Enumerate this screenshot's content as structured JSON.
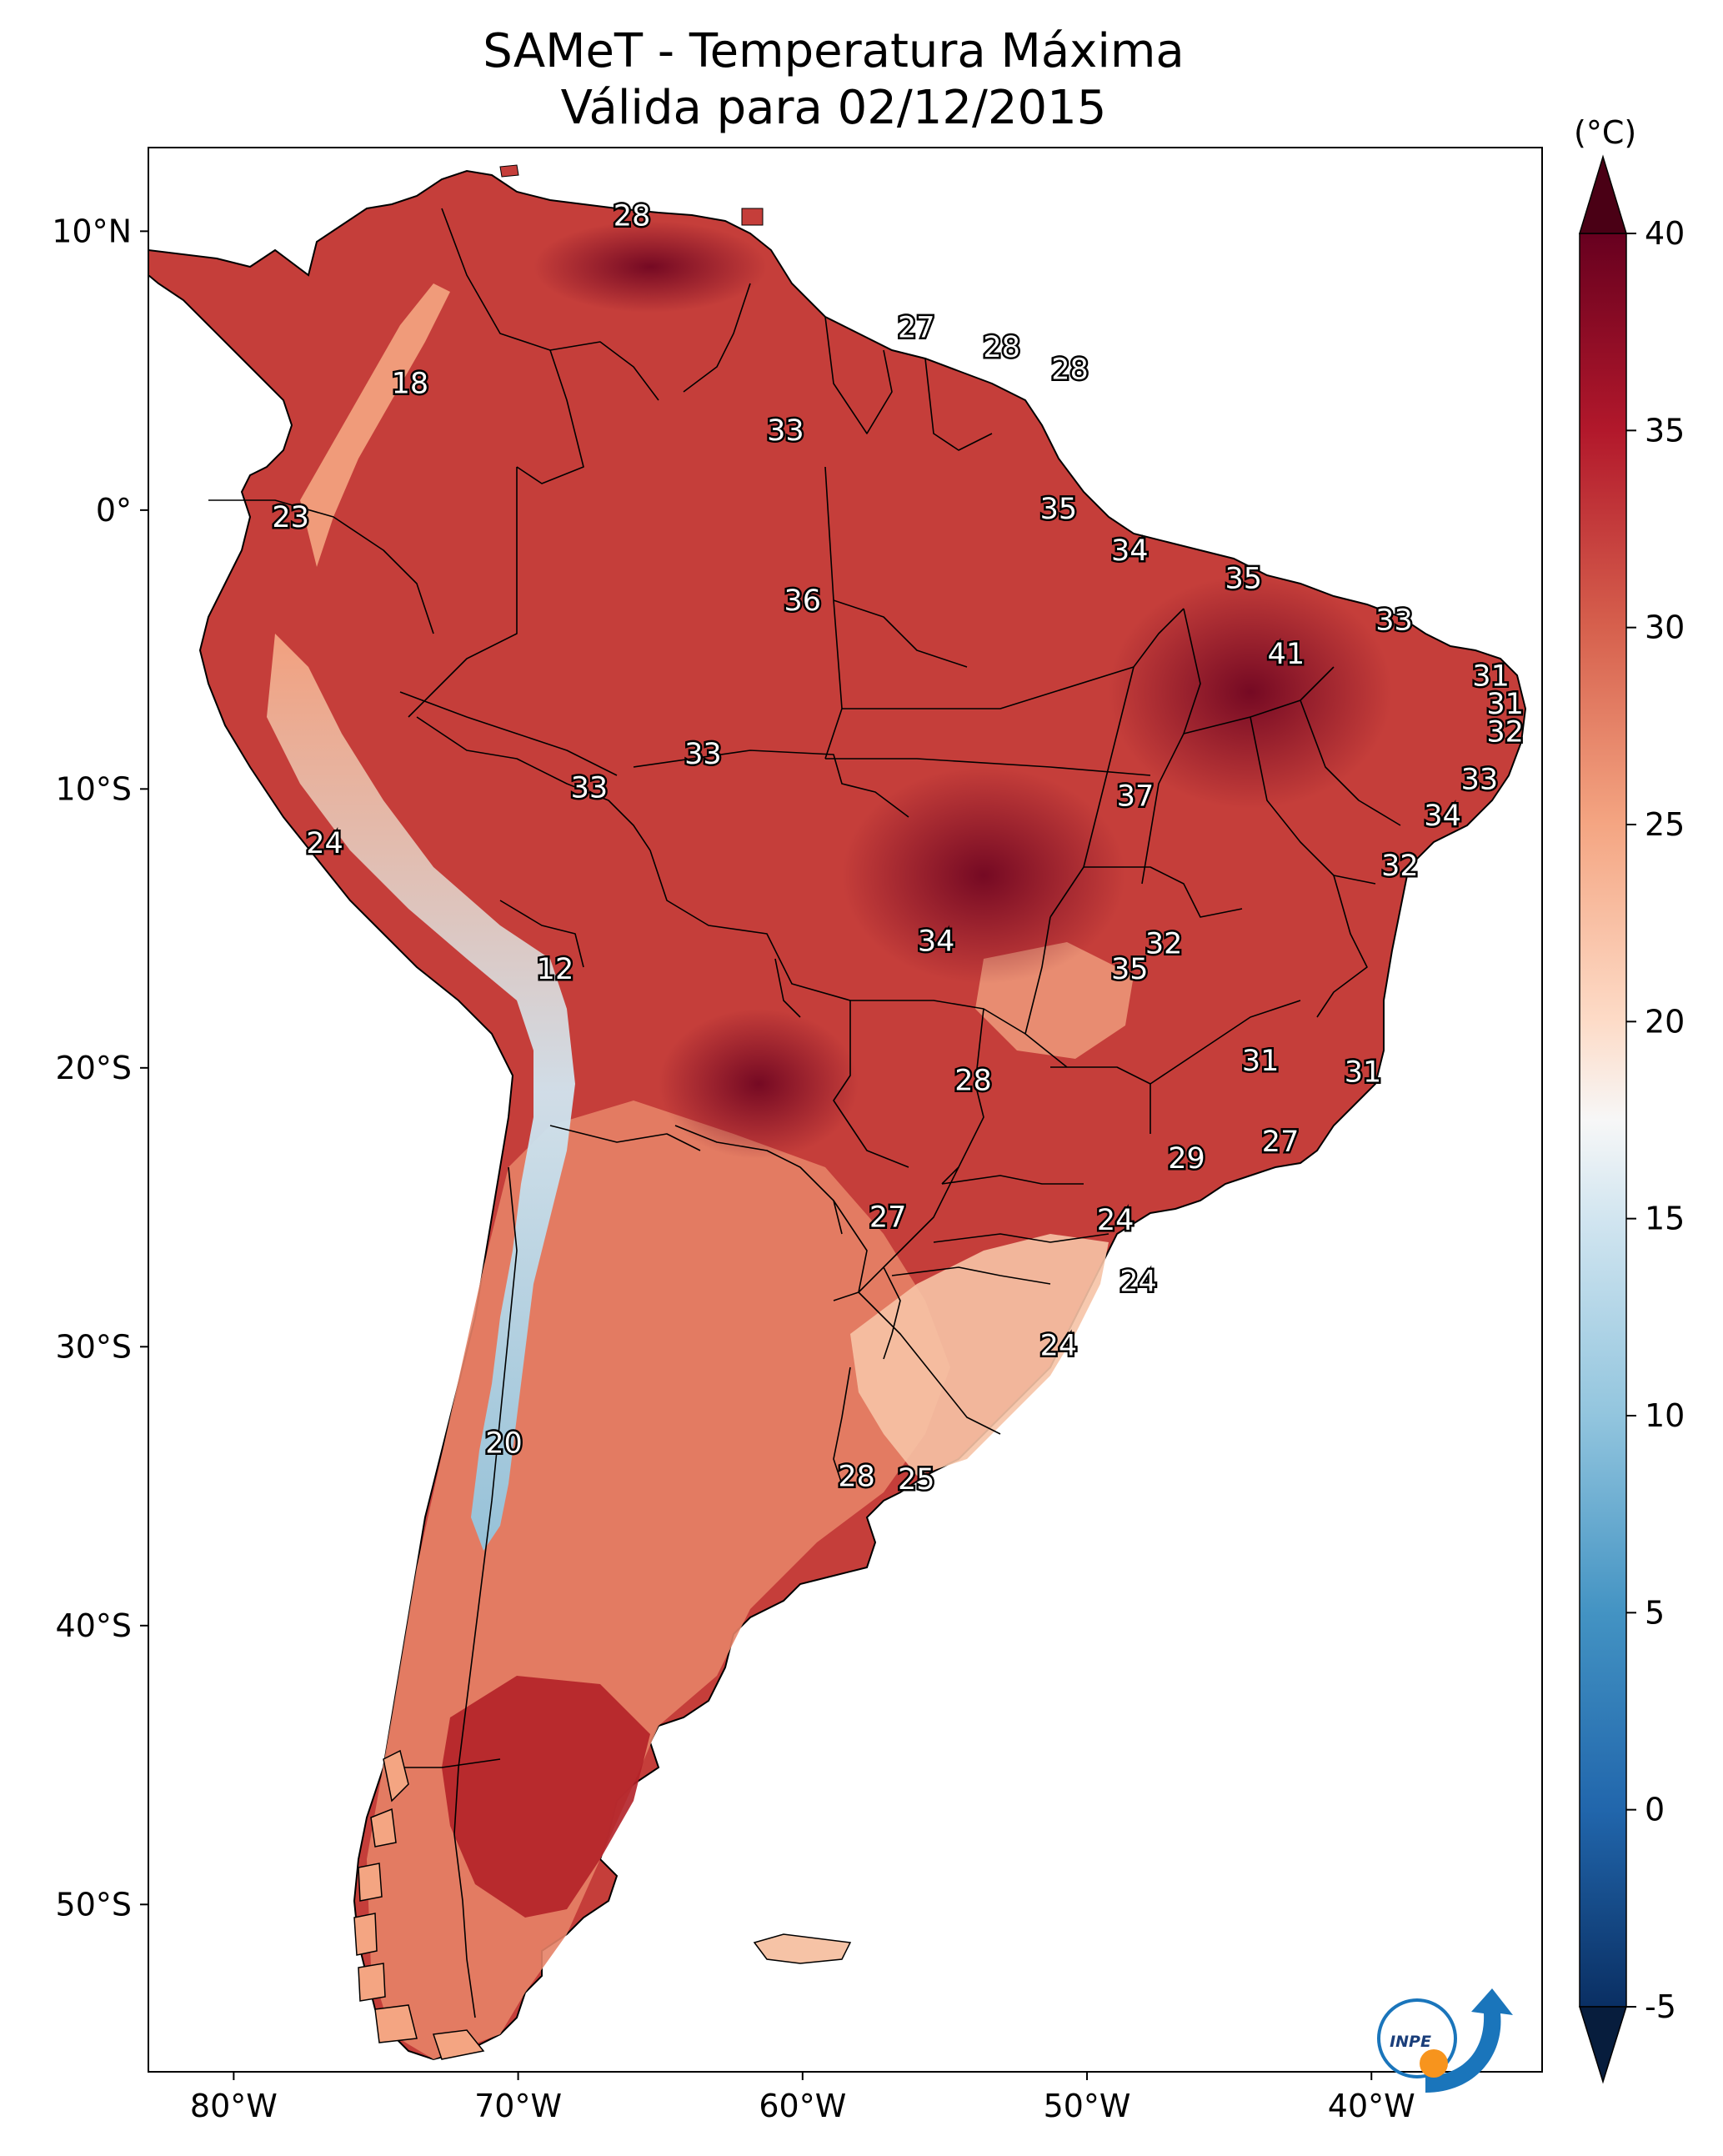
{
  "title_line1": "SAMeT - Temperatura Máxima",
  "title_line2": "Válida para 02/12/2015",
  "colorbar": {
    "unit": "(°C)",
    "ticks": [
      "40",
      "35",
      "30",
      "25",
      "20",
      "15",
      "10",
      "5",
      "0",
      "-5"
    ],
    "tick_values": [
      40,
      35,
      30,
      25,
      20,
      15,
      10,
      5,
      0,
      -5
    ],
    "range": [
      -5,
      40
    ]
  },
  "axes": {
    "lat_labels": [
      "10°N",
      "0°",
      "10°S",
      "20°S",
      "30°S",
      "40°S",
      "50°S"
    ],
    "lat_values": [
      10,
      0,
      -10,
      -20,
      -30,
      -40,
      -50
    ],
    "lon_labels": [
      "80°W",
      "70°W",
      "60°W",
      "50°W",
      "40°W"
    ],
    "lon_values": [
      -80,
      -70,
      -60,
      -50,
      -40
    ],
    "lon_range": [
      -83,
      -34
    ],
    "lat_range": [
      13,
      -56
    ]
  },
  "logo_text": "INPE",
  "contour_labels": [
    {
      "text": "28",
      "lon": -66.0,
      "lat": 10.5
    },
    {
      "text": "27",
      "lon": -56.0,
      "lat": 6.5
    },
    {
      "text": "28",
      "lon": -53.0,
      "lat": 5.8
    },
    {
      "text": "28",
      "lon": -50.6,
      "lat": 5.0
    },
    {
      "text": "18",
      "lon": -73.8,
      "lat": 4.5
    },
    {
      "text": "33",
      "lon": -60.6,
      "lat": 2.8
    },
    {
      "text": "35",
      "lon": -51.0,
      "lat": 0.0
    },
    {
      "text": "34",
      "lon": -48.5,
      "lat": -1.5
    },
    {
      "text": "23",
      "lon": -78.0,
      "lat": -0.3
    },
    {
      "text": "35",
      "lon": -44.5,
      "lat": -2.5
    },
    {
      "text": "33",
      "lon": -39.2,
      "lat": -4.0
    },
    {
      "text": "36",
      "lon": -60.0,
      "lat": -3.3
    },
    {
      "text": "41",
      "lon": -43.0,
      "lat": -5.2
    },
    {
      "text": "31",
      "lon": -35.8,
      "lat": -6.0
    },
    {
      "text": "31",
      "lon": -35.3,
      "lat": -7.0
    },
    {
      "text": "32",
      "lon": -35.3,
      "lat": -8.0
    },
    {
      "text": "33",
      "lon": -63.5,
      "lat": -8.8
    },
    {
      "text": "33",
      "lon": -36.2,
      "lat": -9.7
    },
    {
      "text": "33",
      "lon": -67.5,
      "lat": -10.0
    },
    {
      "text": "37",
      "lon": -48.3,
      "lat": -10.3
    },
    {
      "text": "34",
      "lon": -37.5,
      "lat": -11.0
    },
    {
      "text": "24",
      "lon": -76.8,
      "lat": -12.0
    },
    {
      "text": "32",
      "lon": -39.0,
      "lat": -12.8
    },
    {
      "text": "34",
      "lon": -55.3,
      "lat": -15.5
    },
    {
      "text": "32",
      "lon": -47.3,
      "lat": -15.6
    },
    {
      "text": "35",
      "lon": -48.5,
      "lat": -16.5
    },
    {
      "text": "12",
      "lon": -68.7,
      "lat": -16.5
    },
    {
      "text": "31",
      "lon": -43.9,
      "lat": -19.8
    },
    {
      "text": "31",
      "lon": -40.3,
      "lat": -20.2
    },
    {
      "text": "28",
      "lon": -54.0,
      "lat": -20.5
    },
    {
      "text": "27",
      "lon": -43.2,
      "lat": -22.7
    },
    {
      "text": "29",
      "lon": -46.5,
      "lat": -23.3
    },
    {
      "text": "27",
      "lon": -57.0,
      "lat": -25.4
    },
    {
      "text": "24",
      "lon": -49.0,
      "lat": -25.5
    },
    {
      "text": "24",
      "lon": -48.2,
      "lat": -27.7
    },
    {
      "text": "24",
      "lon": -51.0,
      "lat": -30.0
    },
    {
      "text": "20",
      "lon": -70.5,
      "lat": -33.5
    },
    {
      "text": "28",
      "lon": -58.1,
      "lat": -34.7
    },
    {
      "text": "25",
      "lon": -56.0,
      "lat": -34.8
    }
  ]
}
